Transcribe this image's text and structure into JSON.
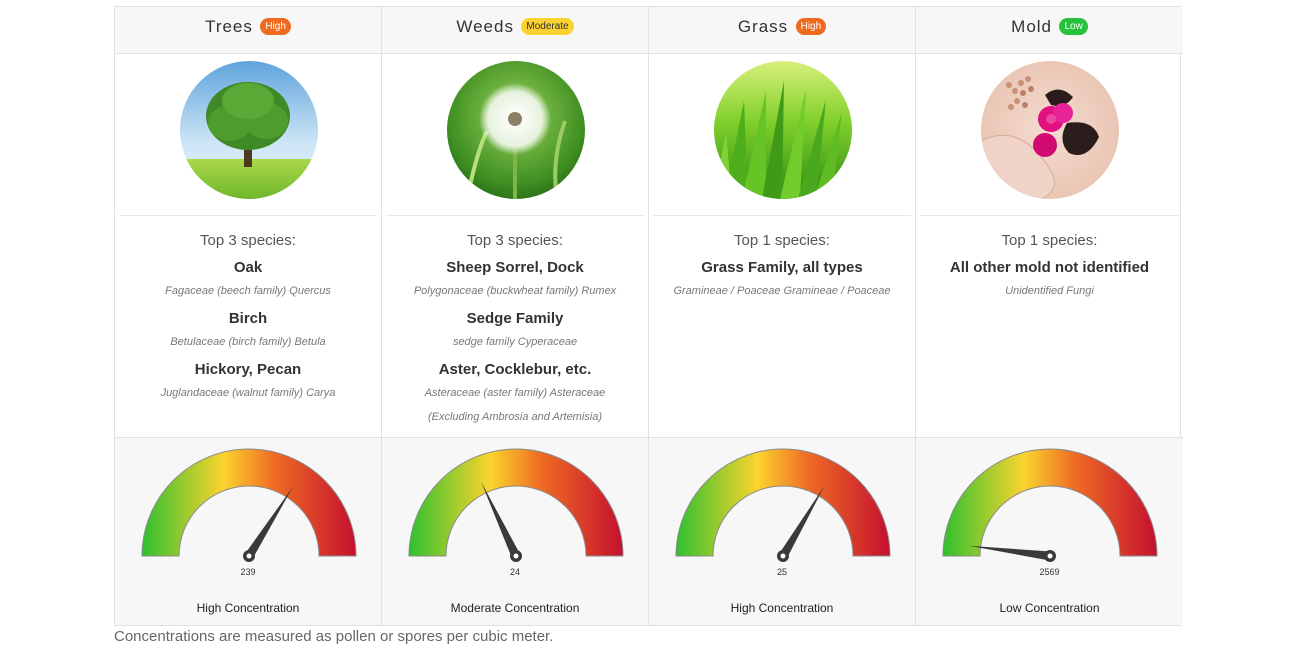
{
  "categories": [
    {
      "title": "Trees",
      "badge": "High",
      "badge_level": "high",
      "image": "tree-photo",
      "species_heading": "Top 3 species:",
      "species": [
        {
          "name": "Oak",
          "scientific": "Fagaceae (beech family) Quercus"
        },
        {
          "name": "Birch",
          "scientific": "Betulaceae (birch family) Betula"
        },
        {
          "name": "Hickory, Pecan",
          "scientific": "Juglandaceae (walnut family) Carya"
        }
      ],
      "gauge_value": "239",
      "gauge_level": 0.68,
      "concentration_label": "High Concentration"
    },
    {
      "title": "Weeds",
      "badge": "Moderate",
      "badge_level": "moderate",
      "image": "dandelion-photo",
      "species_heading": "Top 3 species:",
      "species": [
        {
          "name": "Sheep Sorrel, Dock",
          "scientific": "Polygonaceae (buckwheat family) Rumex"
        },
        {
          "name": "Sedge Family",
          "scientific": "sedge family Cyperaceae"
        },
        {
          "name": "Aster, Cocklebur, etc.",
          "scientific": "Asteraceae (aster family) Asteraceae",
          "note": "(Excluding Ambrosia and Artemisia)"
        }
      ],
      "gauge_value": "24",
      "gauge_level": 0.36,
      "concentration_label": "Moderate Concentration"
    },
    {
      "title": "Grass",
      "badge": "High",
      "badge_level": "high",
      "image": "grass-photo",
      "species_heading": "Top 1 species:",
      "species": [
        {
          "name": "Grass Family, all types",
          "scientific": "Gramineae / Poaceae Gramineae / Poaceae"
        }
      ],
      "gauge_value": "25",
      "gauge_level": 0.67,
      "concentration_label": "High Concentration"
    },
    {
      "title": "Mold",
      "badge": "Low",
      "badge_level": "low",
      "image": "mold-spores-photo",
      "species_heading": "Top 1 species:",
      "species": [
        {
          "name": "All other mold not identified",
          "scientific": "Unidentified Fungi"
        }
      ],
      "gauge_value": "2569",
      "gauge_level": 0.04,
      "concentration_label": "Low Concentration"
    }
  ],
  "footnote": "Concentrations are measured as pollen or spores per cubic meter.",
  "colors": {
    "high": "#ef6a1f",
    "moderate": "#fbd230",
    "low": "#27c23b",
    "gauge_green": "#2fc02f",
    "gauge_yellow": "#fbd42e",
    "gauge_orange": "#ef6a24",
    "gauge_red": "#c4102f",
    "needle": "#3a3a3a"
  }
}
